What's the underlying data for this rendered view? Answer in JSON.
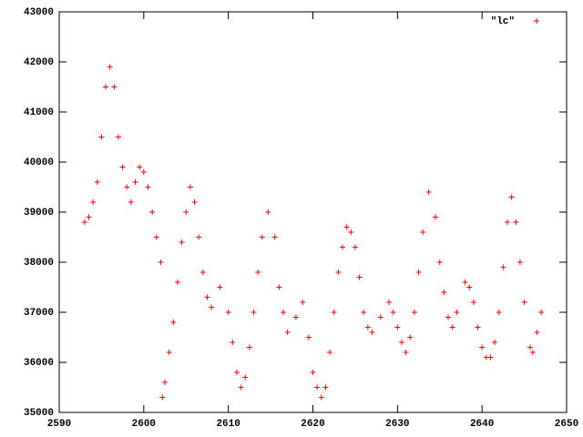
{
  "chart_data": {
    "type": "scatter",
    "legend": "upper right",
    "grid": false,
    "xlim": [
      2590,
      2650
    ],
    "xticks": [
      2590,
      2600,
      2610,
      2620,
      2630,
      2640,
      2650
    ],
    "ylim": [
      35000,
      43000
    ],
    "yticks": [
      35000,
      36000,
      37000,
      38000,
      39000,
      40000,
      41000,
      42000,
      43000
    ],
    "series": [
      {
        "name": "\"lc\"",
        "color": "#ff0000",
        "x": [
          2593,
          2593.5,
          2594,
          2594.5,
          2595,
          2595.5,
          2596,
          2596.5,
          2597,
          2597.5,
          2598,
          2598.5,
          2599,
          2599.5,
          2600,
          2600.5,
          2601,
          2601.5,
          2602,
          2602.2,
          2602.5,
          2603,
          2603.5,
          2604,
          2604.5,
          2605,
          2605.5,
          2606,
          2606.5,
          2607,
          2607.5,
          2608,
          2609,
          2610,
          2610.5,
          2611,
          2611.5,
          2612,
          2612.5,
          2613,
          2613.5,
          2614,
          2614.7,
          2615.5,
          2616,
          2616.5,
          2617,
          2618,
          2618.8,
          2619.5,
          2620,
          2620.5,
          2621,
          2621.5,
          2622,
          2622.5,
          2623,
          2623.5,
          2624,
          2624.5,
          2625,
          2625.5,
          2626,
          2626.5,
          2627,
          2628,
          2629,
          2629.5,
          2630,
          2630.5,
          2631,
          2631.5,
          2632,
          2632.5,
          2633,
          2633.7,
          2634.5,
          2635,
          2635.5,
          2636,
          2636.5,
          2637,
          2638,
          2638.5,
          2639,
          2639.5,
          2640,
          2640.5,
          2641,
          2641.5,
          2642,
          2642.5,
          2643,
          2643.5,
          2644,
          2644.5,
          2645,
          2645.7,
          2646,
          2646.5,
          2647
        ],
        "values": [
          38800,
          38900,
          39200,
          39600,
          40500,
          41500,
          41900,
          41500,
          40500,
          39900,
          39500,
          39200,
          39600,
          39900,
          39800,
          39500,
          39000,
          38500,
          38000,
          35300,
          35600,
          36200,
          36800,
          37600,
          38400,
          39000,
          39500,
          39200,
          38500,
          37800,
          37300,
          37100,
          37500,
          37000,
          36400,
          35800,
          35500,
          35700,
          36300,
          37000,
          37800,
          38500,
          39000,
          38500,
          37500,
          37000,
          36600,
          36900,
          37200,
          36500,
          35800,
          35500,
          35300,
          35500,
          36200,
          37000,
          37800,
          38300,
          38700,
          38600,
          38300,
          37700,
          37000,
          36700,
          36600,
          36900,
          37200,
          37000,
          36700,
          36400,
          36200,
          36500,
          37000,
          37800,
          38600,
          39400,
          38900,
          38000,
          37400,
          36900,
          36700,
          37000,
          37600,
          37500,
          37200,
          36700,
          36300,
          36100,
          36100,
          36400,
          37000,
          37900,
          38800,
          39300,
          38800,
          38000,
          37200,
          36300,
          36200,
          36600,
          37000
        ]
      }
    ]
  }
}
